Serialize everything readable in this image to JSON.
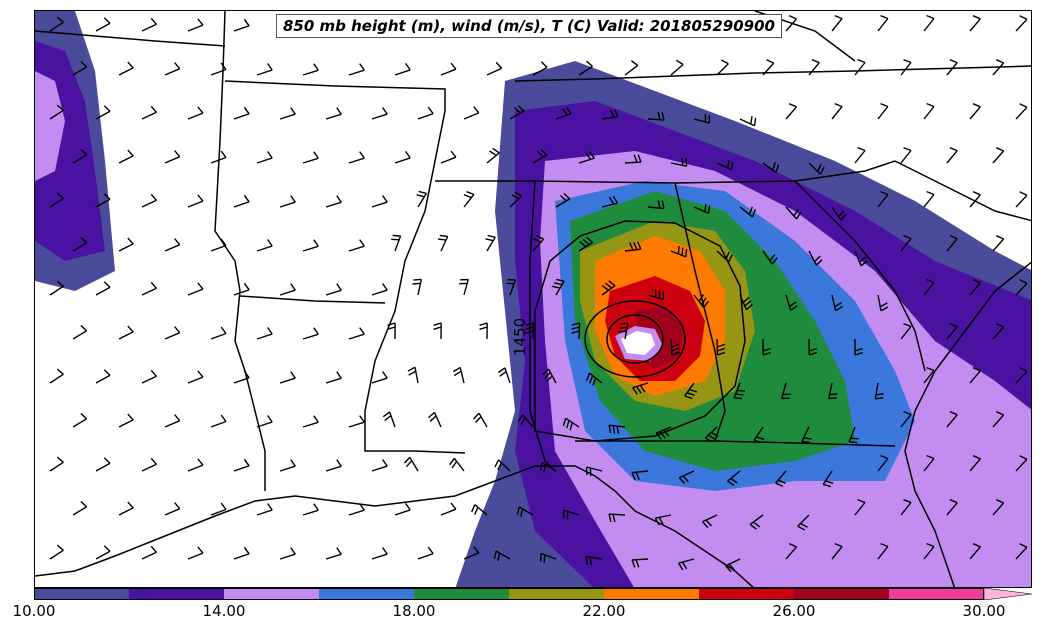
{
  "title": "850 mb height (m), wind (m/s), T (C) Valid: 201805290900",
  "contour_label": "1450",
  "colorbar": {
    "levels": [
      10,
      12,
      14,
      16,
      18,
      20,
      22,
      24,
      26,
      28,
      30
    ],
    "tick_labels": [
      "10.00",
      "14.00",
      "18.00",
      "22.00",
      "26.00",
      "30.00"
    ],
    "colors": [
      "#4b4b9b",
      "#4a12a0",
      "#c38cf0",
      "#3c78dc",
      "#1e8c3c",
      "#969614",
      "#ff7a00",
      "#cd0010",
      "#a0001e",
      "#f03c9b",
      "#ffb4dc"
    ]
  },
  "fill_colors": {
    "c10": "#4b4b9b",
    "c12": "#4a12a0",
    "c14": "#c38cf0",
    "c16": "#3c78dc",
    "c18": "#1e8c3c",
    "c20": "#969614",
    "c22": "#ff7a00",
    "c24": "#cd0010",
    "c26": "#a0001e",
    "c28": "#f03c9b"
  }
}
